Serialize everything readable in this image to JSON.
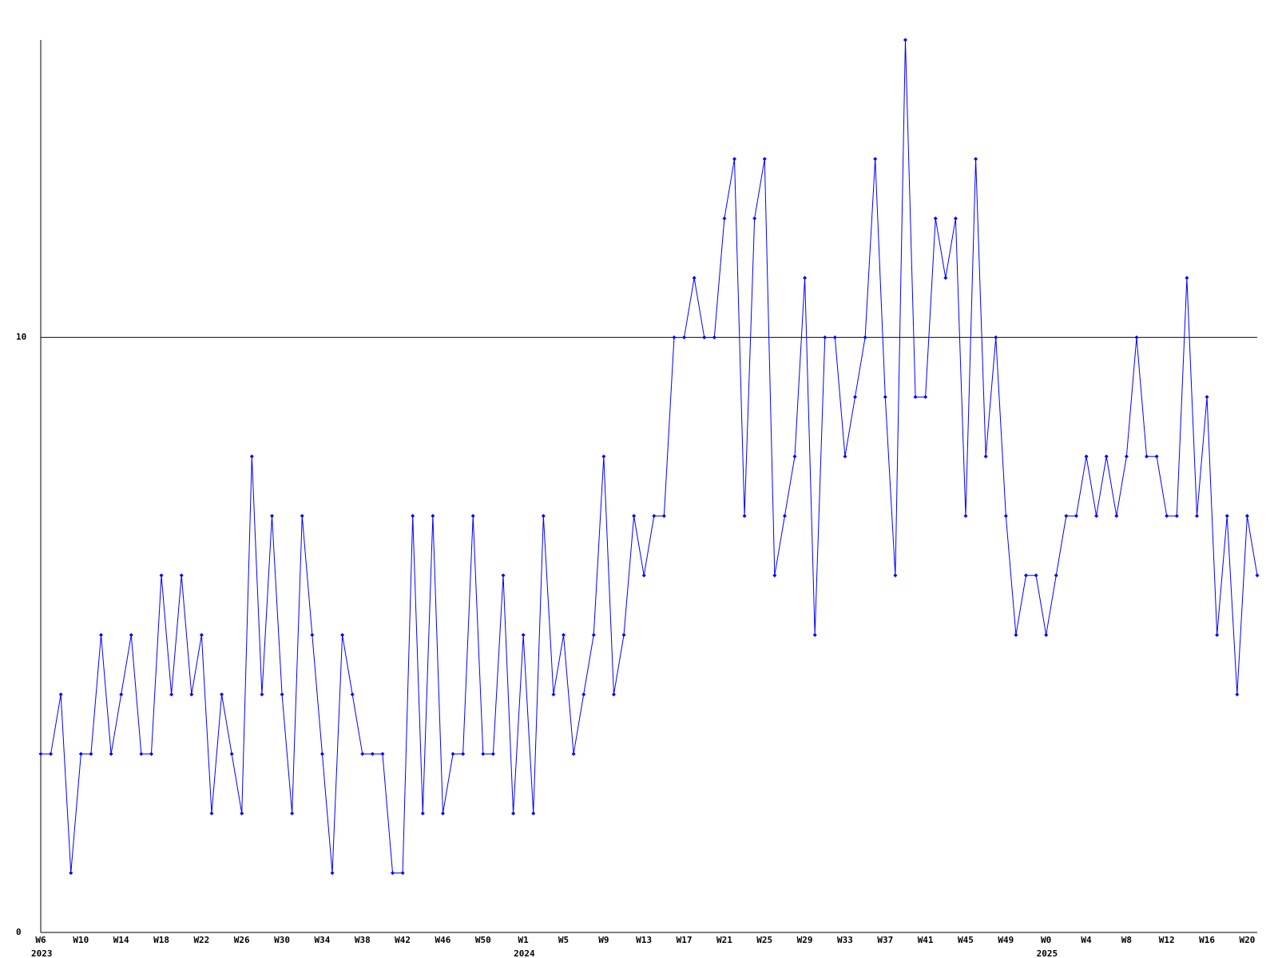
{
  "chart_data": {
    "type": "line",
    "categories": [
      "W6",
      null,
      null,
      null,
      "W10",
      null,
      null,
      null,
      "W14",
      null,
      null,
      null,
      "W18",
      null,
      null,
      null,
      "W22",
      null,
      null,
      null,
      "W26",
      null,
      null,
      null,
      "W30",
      null,
      null,
      null,
      "W34",
      null,
      null,
      null,
      "W38",
      null,
      null,
      null,
      "W42",
      null,
      null,
      null,
      "W46",
      null,
      null,
      null,
      "W50",
      null,
      null,
      null,
      "W1",
      null,
      null,
      null,
      "W5",
      null,
      null,
      null,
      "W9",
      null,
      null,
      null,
      "W13",
      null,
      null,
      null,
      "W17",
      null,
      null,
      null,
      "W21",
      null,
      null,
      null,
      "W25",
      null,
      null,
      null,
      "W29",
      null,
      null,
      null,
      "W33",
      null,
      null,
      null,
      "W37",
      null,
      null,
      null,
      "W41",
      null,
      null,
      null,
      "W45",
      null,
      null,
      null,
      "W49",
      null,
      null,
      null,
      "W0",
      null,
      null,
      null,
      "W4",
      null,
      null,
      null,
      "W8",
      null,
      null,
      null,
      "W12",
      null,
      null,
      null,
      "W16",
      null,
      null,
      null,
      "W20",
      null
    ],
    "categories_year": [
      "2023",
      null,
      null,
      null,
      null,
      null,
      null,
      null,
      null,
      null,
      null,
      null,
      null,
      null,
      null,
      null,
      null,
      null,
      null,
      null,
      null,
      null,
      null,
      null,
      null,
      null,
      null,
      null,
      null,
      null,
      null,
      null,
      null,
      null,
      null,
      null,
      null,
      null,
      null,
      null,
      null,
      null,
      null,
      null,
      null,
      null,
      null,
      null,
      "2024",
      null,
      null,
      null,
      null,
      null,
      null,
      null,
      null,
      null,
      null,
      null,
      null,
      null,
      null,
      null,
      null,
      null,
      null,
      null,
      null,
      null,
      null,
      null,
      null,
      null,
      null,
      null,
      null,
      null,
      null,
      null,
      null,
      null,
      null,
      null,
      null,
      null,
      null,
      null,
      null,
      null,
      null,
      null,
      null,
      null,
      null,
      null,
      null,
      null,
      null,
      null,
      "2025",
      null,
      null,
      null,
      null,
      null,
      null,
      null,
      null,
      null,
      null,
      null,
      null,
      null,
      null,
      null,
      null,
      null,
      null,
      null,
      null,
      null
    ],
    "series": [
      {
        "color": "#0000ff",
        "values": [
          3,
          3,
          4,
          1,
          3,
          3,
          5,
          3,
          4,
          5,
          3,
          3,
          6,
          4,
          6,
          4,
          5,
          2,
          4,
          3,
          2,
          8,
          4,
          7,
          4,
          2,
          7,
          5,
          3,
          1,
          5,
          4,
          3,
          3,
          3,
          1,
          1,
          7,
          2,
          7,
          2,
          3,
          3,
          7,
          3,
          3,
          6,
          2,
          5,
          2,
          7,
          4,
          5,
          3,
          4,
          5,
          8,
          4,
          5,
          7,
          6,
          7,
          7,
          10,
          10,
          11,
          10,
          10,
          12,
          13,
          7,
          12,
          13,
          6,
          7,
          8,
          11,
          5,
          10,
          10,
          8,
          9,
          10,
          13,
          9,
          6,
          15,
          9,
          9,
          12,
          11,
          12,
          7,
          13,
          8,
          10,
          7,
          5,
          6,
          6,
          5,
          6,
          7,
          7,
          8,
          7,
          8,
          7,
          8,
          10,
          8,
          8,
          7,
          7,
          11,
          7,
          9,
          5,
          7,
          4,
          7,
          6
        ]
      }
    ],
    "ylim": [
      0,
      15
    ],
    "yticks": [
      0,
      10
    ],
    "grid": true
  }
}
